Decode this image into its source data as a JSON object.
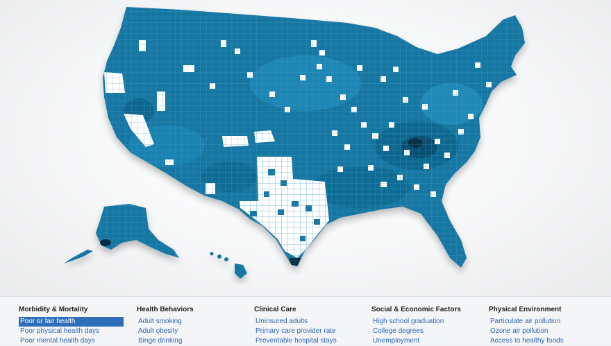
{
  "map": {
    "subject": "United States county choropleth",
    "palette": {
      "base": "#1677a2",
      "light": "#2a91c3",
      "dark": "#0a5e80",
      "darkest": "#062f44",
      "no_data": "#ffffff",
      "county_border": "#5aa9cc"
    }
  },
  "menu": {
    "columns": [
      {
        "heading": "Morbidity & Mortality",
        "items": [
          {
            "label": "Poor or fair health",
            "selected": true
          },
          {
            "label": "Poor physical health days",
            "selected": false
          },
          {
            "label": "Poor mental health days",
            "selected": false
          }
        ]
      },
      {
        "heading": "Health Behaviors",
        "items": [
          {
            "label": "Adult smoking",
            "selected": false
          },
          {
            "label": "Adult obesity",
            "selected": false
          },
          {
            "label": "Binge drinking",
            "selected": false
          }
        ]
      },
      {
        "heading": "Clinical Care",
        "items": [
          {
            "label": "Uninsured adults",
            "selected": false
          },
          {
            "label": "Primary care provider rate",
            "selected": false
          },
          {
            "label": "Preventable hospital stays",
            "selected": false
          }
        ]
      },
      {
        "heading": "Social & Economic Factors",
        "items": [
          {
            "label": "High school graduation",
            "selected": false
          },
          {
            "label": "College degrees",
            "selected": false
          },
          {
            "label": "Unemployment",
            "selected": false
          }
        ]
      },
      {
        "heading": "Physical Environment",
        "items": [
          {
            "label": "Particulate air pollution",
            "selected": false
          },
          {
            "label": "Ozone air pollution",
            "selected": false
          },
          {
            "label": "Access to healthy foods",
            "selected": false
          }
        ]
      }
    ]
  }
}
